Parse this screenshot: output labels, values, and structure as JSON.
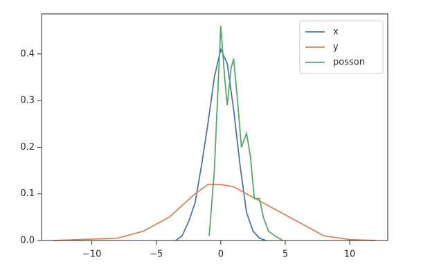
{
  "chart_data": {
    "type": "line",
    "xlim": [
      -13.9,
      12.95
    ],
    "ylim": [
      0,
      0.486
    ],
    "xticks": [
      {
        "value": -10,
        "label": "−10"
      },
      {
        "value": -5,
        "label": "−5"
      },
      0,
      5,
      10
    ],
    "yticks": [
      {
        "value": 0,
        "label": "0.0"
      },
      0.1,
      0.2,
      0.3,
      0.4
    ],
    "legend": "upper right",
    "series": [
      {
        "name": "x",
        "color": "#4c72b0",
        "x": [
          -3.5,
          -3,
          -2.5,
          -2,
          -1.5,
          -1,
          -0.5,
          0,
          0.5,
          1,
          1.5,
          2,
          2.5,
          3,
          3.5
        ],
        "values": [
          0,
          0.01,
          0.04,
          0.08,
          0.16,
          0.25,
          0.35,
          0.41,
          0.38,
          0.28,
          0.16,
          0.06,
          0.02,
          0.005,
          0
        ]
      },
      {
        "name": "y",
        "color": "#dd8452",
        "x": [
          -13,
          -10,
          -8,
          -6,
          -4,
          -2,
          -1,
          0,
          1,
          2,
          4,
          6,
          8,
          10,
          12
        ],
        "values": [
          0,
          0.003,
          0.005,
          0.02,
          0.05,
          0.1,
          0.12,
          0.12,
          0.115,
          0.1,
          0.07,
          0.04,
          0.01,
          0.002,
          0
        ]
      },
      {
        "name": "posson",
        "color": "#55a868",
        "x": [
          -0.9,
          -0.5,
          0,
          0.3,
          0.5,
          0.8,
          1,
          1.3,
          1.6,
          2,
          2.3,
          2.6,
          3,
          3.3,
          3.7,
          4.2,
          4.8
        ],
        "values": [
          0.01,
          0.15,
          0.46,
          0.35,
          0.29,
          0.37,
          0.39,
          0.3,
          0.2,
          0.23,
          0.18,
          0.09,
          0.09,
          0.05,
          0.02,
          0.01,
          0
        ]
      }
    ]
  }
}
